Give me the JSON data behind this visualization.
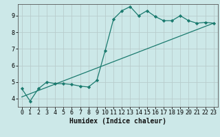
{
  "title": "",
  "xlabel": "Humidex (Indice chaleur)",
  "background_color": "#cce8e8",
  "line_color": "#1a7a6e",
  "grid_color": "#b8cccc",
  "xlim": [
    -0.5,
    23.5
  ],
  "ylim": [
    3.5,
    9.7
  ],
  "xticks": [
    0,
    1,
    2,
    3,
    4,
    5,
    6,
    7,
    8,
    9,
    10,
    11,
    12,
    13,
    14,
    15,
    16,
    17,
    18,
    19,
    20,
    21,
    22,
    23
  ],
  "yticks": [
    4,
    5,
    6,
    7,
    8,
    9
  ],
  "curve_x": [
    0,
    1,
    2,
    3,
    4,
    5,
    6,
    7,
    8,
    9,
    10,
    11,
    12,
    13,
    14,
    15,
    16,
    17,
    18,
    19,
    20,
    21,
    22,
    23
  ],
  "curve_y": [
    4.6,
    3.85,
    4.6,
    5.0,
    4.9,
    4.9,
    4.85,
    4.75,
    4.7,
    5.1,
    6.9,
    8.8,
    9.3,
    9.55,
    9.0,
    9.3,
    8.95,
    8.7,
    8.7,
    9.0,
    8.7,
    8.55,
    8.6,
    8.55
  ],
  "line_x": [
    0,
    23
  ],
  "line_y": [
    4.1,
    8.55
  ],
  "marker": "D",
  "markersize": 2.2,
  "linewidth": 0.9,
  "label_fontsize": 7,
  "tick_fontsize": 6
}
